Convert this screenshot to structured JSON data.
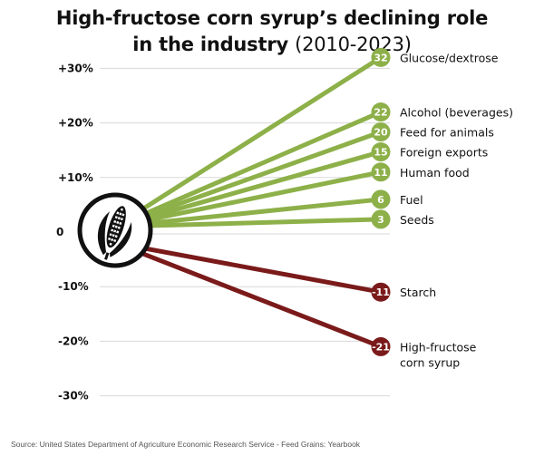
{
  "title": {
    "line1": "High-fructose corn syrup’s declining role",
    "line2_bold": "in the industry",
    "line2_years": "(2010-2023)"
  },
  "source": "Source: United States Department of Agriculture Economic Research Service - Feed Grains: Yearbook",
  "colors": {
    "positive": "#8db049",
    "negative": "#7a1a1a",
    "grid": "#d9d9d9"
  },
  "chart_data": {
    "type": "line",
    "ylim": [
      -30,
      30
    ],
    "yticks": [
      {
        "value": 30,
        "label": "+30%"
      },
      {
        "value": 20,
        "label": "+20%"
      },
      {
        "value": 10,
        "label": "+10%"
      },
      {
        "value": 0,
        "label": "0"
      },
      {
        "value": -10,
        "label": "-10%"
      },
      {
        "value": -20,
        "label": "-20%"
      },
      {
        "value": -30,
        "label": "-30%"
      }
    ],
    "series": [
      {
        "category": "Glucose/dextrose",
        "value": 32,
        "label": "32"
      },
      {
        "category": "Alcohol (beverages)",
        "value": 22,
        "label": "22"
      },
      {
        "category": "Feed for animals",
        "value": 20,
        "label": "20"
      },
      {
        "category": "Foreign exports",
        "value": 15,
        "label": "15"
      },
      {
        "category": "Human food",
        "value": 11,
        "label": "11"
      },
      {
        "category": "Fuel",
        "value": 6,
        "label": "6"
      },
      {
        "category": "Seeds",
        "value": 3,
        "label": "3"
      },
      {
        "category": "Starch",
        "value": -11,
        "label": "-11"
      },
      {
        "category": "High-fructose corn syrup",
        "value": -21,
        "label": "-21"
      }
    ]
  }
}
